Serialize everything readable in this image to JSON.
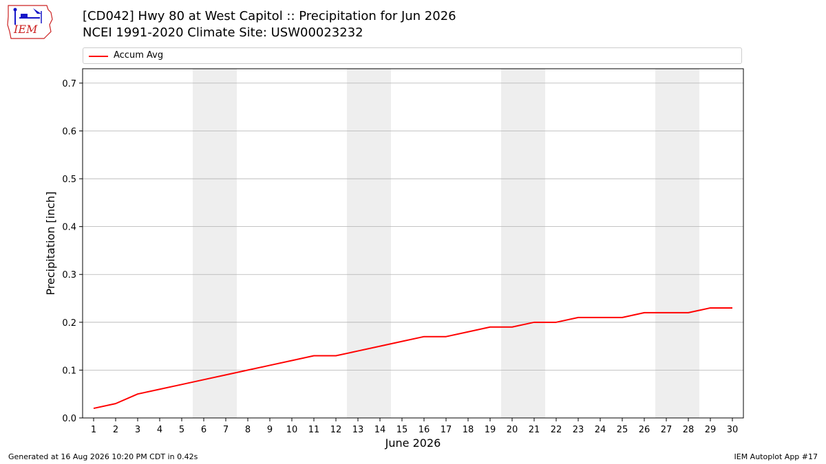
{
  "header": {
    "logo_text": "IEM",
    "title_line1": "[CD042] Hwy 80 at West Capitol :: Precipitation for Jun 2026",
    "title_line2": "NCEI 1991-2020 Climate Site: USW00023232"
  },
  "footer": {
    "left": "Generated at 16 Aug 2026 10:20 PM CDT in 0.42s",
    "right": "IEM Autoplot App #17"
  },
  "colors": {
    "series": "#ff0000",
    "weekend_band": "#eeeeee",
    "grid": "#b0b0b0",
    "logo": "#1515c8",
    "logo_text": "#cc2222"
  },
  "chart_data": {
    "type": "line",
    "title": "[CD042] Hwy 80 at West Capitol :: Precipitation for Jun 2026",
    "subtitle": "NCEI 1991-2020 Climate Site: USW00023232",
    "xlabel": "June 2026",
    "ylabel": "Precipitation [inch]",
    "xlim": [
      0.5,
      30.5
    ],
    "ylim": [
      0,
      0.73
    ],
    "x_ticks": [
      1,
      2,
      3,
      4,
      5,
      6,
      7,
      8,
      9,
      10,
      11,
      12,
      13,
      14,
      15,
      16,
      17,
      18,
      19,
      20,
      21,
      22,
      23,
      24,
      25,
      26,
      27,
      28,
      29,
      30
    ],
    "y_ticks": [
      0.0,
      0.1,
      0.2,
      0.3,
      0.4,
      0.5,
      0.6,
      0.7
    ],
    "y_tick_labels": [
      "0.0",
      "0.1",
      "0.2",
      "0.3",
      "0.4",
      "0.5",
      "0.6",
      "0.7"
    ],
    "grid": "horizontal",
    "legend_position": "top",
    "weekend_days": [
      6,
      7,
      13,
      14,
      20,
      21,
      27,
      28
    ],
    "series": [
      {
        "name": "Accum Avg",
        "color": "#ff0000",
        "x": [
          1,
          2,
          3,
          4,
          5,
          6,
          7,
          8,
          9,
          10,
          11,
          12,
          13,
          14,
          15,
          16,
          17,
          18,
          19,
          20,
          21,
          22,
          23,
          24,
          25,
          26,
          27,
          28,
          29,
          30
        ],
        "values": [
          0.02,
          0.03,
          0.05,
          0.06,
          0.07,
          0.08,
          0.09,
          0.1,
          0.11,
          0.12,
          0.13,
          0.13,
          0.14,
          0.15,
          0.16,
          0.17,
          0.17,
          0.18,
          0.19,
          0.19,
          0.2,
          0.2,
          0.21,
          0.21,
          0.21,
          0.22,
          0.22,
          0.22,
          0.23,
          0.23
        ]
      }
    ]
  }
}
